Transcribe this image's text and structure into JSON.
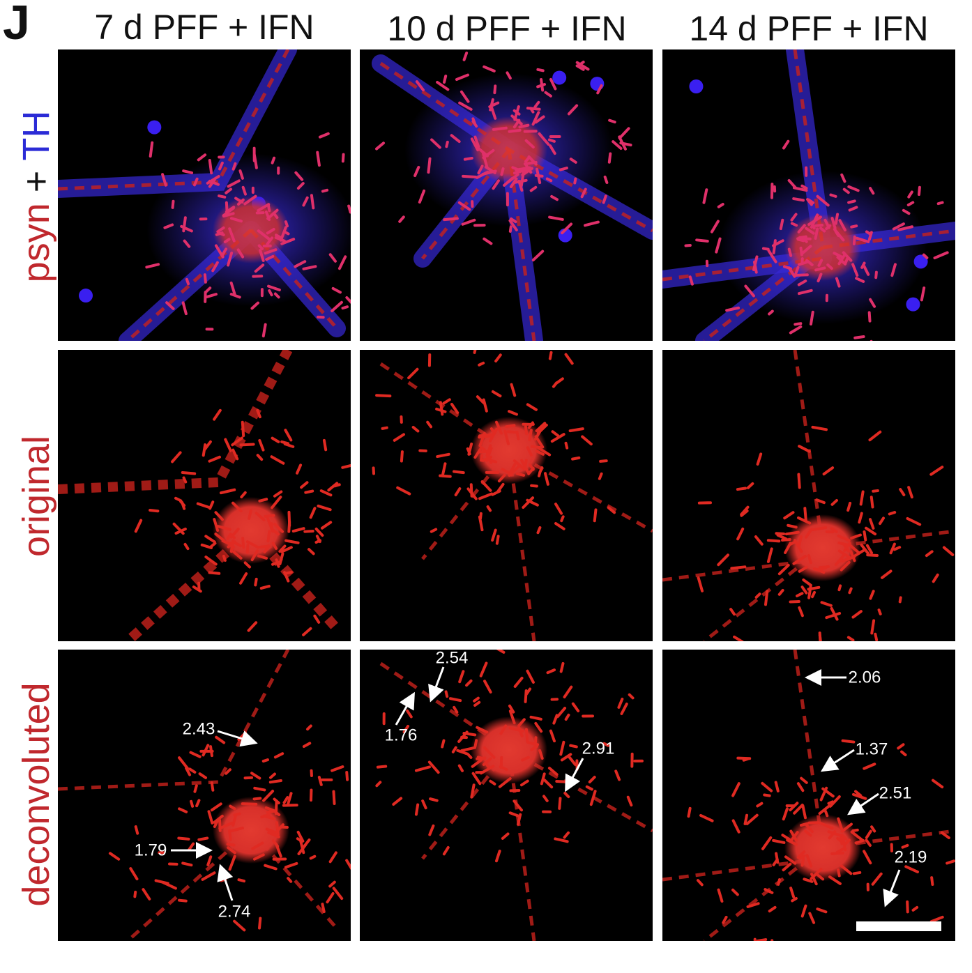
{
  "panel_letter": "J",
  "columns": [
    "7 d PFF + IFN",
    "10 d PFF + IFN",
    "14 d PFF + IFN"
  ],
  "rows": [
    {
      "parts": [
        {
          "text": "psyn",
          "color": "#c0282d"
        },
        {
          "text": "+",
          "color": "#111111"
        },
        {
          "text": "TH",
          "color": "#2b2bd6"
        }
      ]
    },
    {
      "parts": [
        {
          "text": "original",
          "color": "#c0282d"
        }
      ]
    },
    {
      "parts": [
        {
          "text": "deconvoluted",
          "color": "#c0282d"
        }
      ]
    }
  ],
  "annotations": [
    [
      "2.43",
      "1.79",
      "2.74"
    ],
    [
      "2.54",
      "1.76",
      "2.91"
    ],
    [
      "2.06",
      "1.37",
      "2.51",
      "2.19"
    ]
  ]
}
